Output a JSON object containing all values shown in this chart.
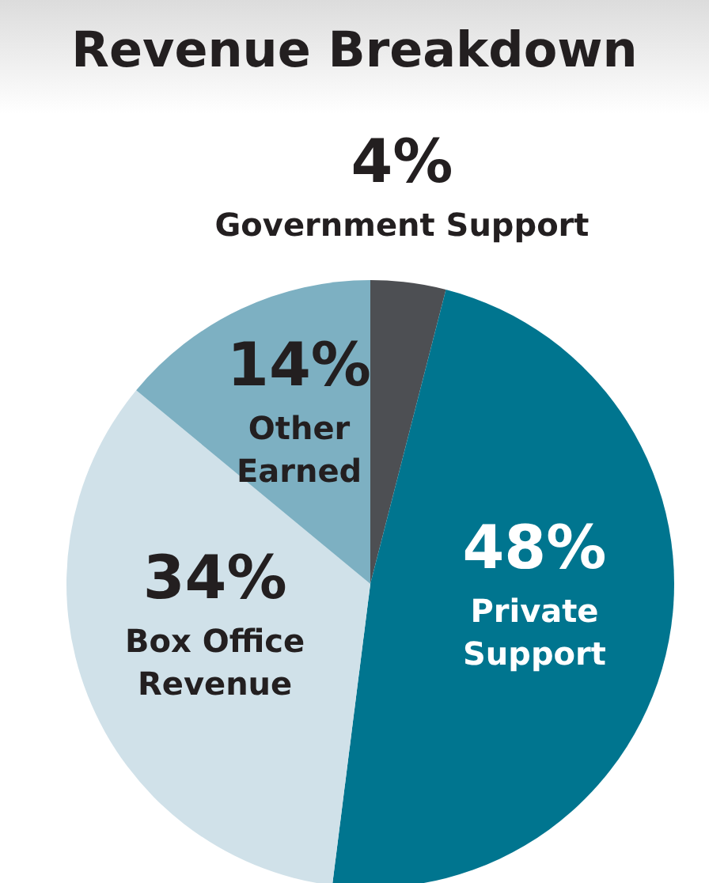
{
  "chart_data": {
    "type": "pie",
    "title": "Revenue Breakdown",
    "categories": [
      "Government Support",
      "Private Support",
      "Box Office Revenue",
      "Other Earned"
    ],
    "values": [
      4,
      48,
      34,
      14
    ],
    "colors": [
      "#4d4f53",
      "#00758f",
      "#d0e1e9",
      "#7db0c2"
    ],
    "value_labels": [
      "4%",
      "48%",
      "34%",
      "14%"
    ],
    "legend": false
  }
}
